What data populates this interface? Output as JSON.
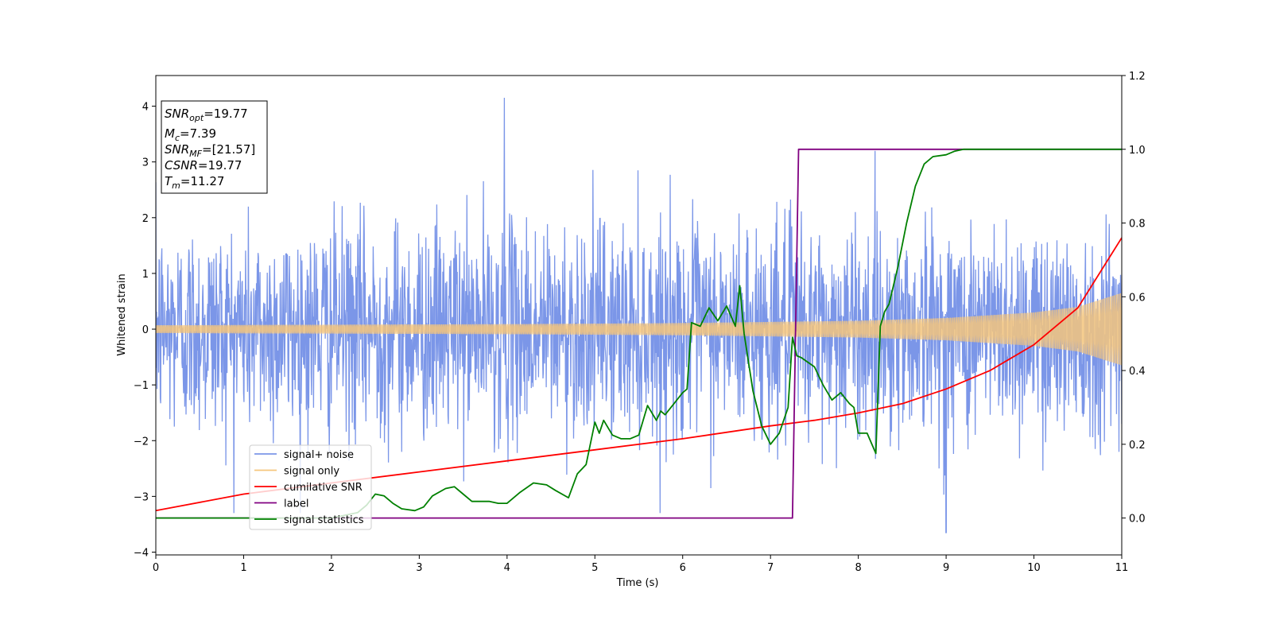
{
  "chart_data": {
    "type": "line",
    "xlabel": "Time (s)",
    "ylabel": "Whitened strain",
    "xlim": [
      0,
      11
    ],
    "ylim": [
      -4.05,
      4.55
    ],
    "y2lim": [
      -0.1,
      1.2
    ],
    "xticks": [
      0,
      1,
      2,
      3,
      4,
      5,
      6,
      7,
      8,
      9,
      10,
      11
    ],
    "yticks": [
      -4,
      -3,
      -2,
      -1,
      0,
      1,
      2,
      3,
      4
    ],
    "y2ticks": [
      0.0,
      0.2,
      0.4,
      0.6,
      0.8,
      1.0,
      1.2
    ],
    "grid": false,
    "legend_position": "lower-left",
    "annotation": {
      "lines": [
        {
          "sym": "SNR",
          "sub": "opt",
          "text": "=19.77"
        },
        {
          "sym": "M",
          "sub": "c",
          "text": "=7.39"
        },
        {
          "sym": "SNR",
          "sub": "MF",
          "text": "=[21.57]"
        },
        {
          "sym": "CSNR",
          "sub": "",
          "text": "=19.77"
        },
        {
          "sym": "T",
          "sub": "m",
          "text": "=11.27"
        }
      ]
    },
    "series": [
      {
        "name": "signal+ noise",
        "axis": "left",
        "color": "#7b96e8",
        "description": "noisy whitened strain, approx std 1.0, peaks near 4.15 at x=3.97 and -3.65 at x=9.0"
      },
      {
        "name": "signal only",
        "axis": "left",
        "color": "#f5c67c",
        "envelope": {
          "x": [
            0,
            2,
            4,
            6,
            8,
            9,
            10,
            10.5,
            11
          ],
          "amp": [
            0.07,
            0.08,
            0.09,
            0.11,
            0.15,
            0.2,
            0.3,
            0.4,
            0.65
          ]
        }
      },
      {
        "name": "cumilative SNR",
        "axis": "right",
        "color": "#ff0000",
        "x": [
          0,
          1,
          2,
          3,
          4,
          5,
          6,
          7,
          7.5,
          8,
          8.5,
          9,
          9.5,
          10,
          10.5,
          11
        ],
        "y": [
          0.02,
          0.065,
          0.095,
          0.125,
          0.155,
          0.185,
          0.215,
          0.25,
          0.265,
          0.285,
          0.31,
          0.35,
          0.4,
          0.47,
          0.57,
          0.76
        ]
      },
      {
        "name": "label",
        "axis": "right",
        "color": "#800080",
        "x": [
          0,
          7.25,
          7.32,
          11
        ],
        "y": [
          0.0,
          0.0,
          1.0,
          1.0
        ]
      },
      {
        "name": "signal statistics",
        "axis": "right",
        "color": "#008000",
        "x": [
          0,
          1,
          2.0,
          2.3,
          2.4,
          2.5,
          2.6,
          2.7,
          2.8,
          2.95,
          3.05,
          3.15,
          3.3,
          3.4,
          3.5,
          3.6,
          3.8,
          3.9,
          4.0,
          4.15,
          4.3,
          4.45,
          4.55,
          4.7,
          4.8,
          4.9,
          5.0,
          5.05,
          5.1,
          5.2,
          5.3,
          5.4,
          5.5,
          5.6,
          5.7,
          5.75,
          5.8,
          5.9,
          6.0,
          6.05,
          6.1,
          6.2,
          6.3,
          6.4,
          6.5,
          6.6,
          6.65,
          6.7,
          6.8,
          6.9,
          7.0,
          7.1,
          7.2,
          7.25,
          7.3,
          7.35,
          7.5,
          7.6,
          7.7,
          7.8,
          7.9,
          7.95,
          8.0,
          8.1,
          8.2,
          8.25,
          8.3,
          8.35,
          8.45,
          8.55,
          8.65,
          8.75,
          8.85,
          9.0,
          9.1,
          9.2,
          9.3,
          9.5,
          9.8,
          10.5,
          11
        ],
        "y": [
          0.0,
          0.0,
          0.0,
          0.015,
          0.035,
          0.065,
          0.06,
          0.04,
          0.025,
          0.02,
          0.03,
          0.06,
          0.08,
          0.085,
          0.065,
          0.045,
          0.045,
          0.04,
          0.04,
          0.07,
          0.095,
          0.09,
          0.075,
          0.055,
          0.12,
          0.145,
          0.26,
          0.23,
          0.265,
          0.225,
          0.215,
          0.215,
          0.225,
          0.305,
          0.265,
          0.29,
          0.28,
          0.31,
          0.34,
          0.35,
          0.53,
          0.52,
          0.57,
          0.535,
          0.575,
          0.52,
          0.63,
          0.5,
          0.345,
          0.25,
          0.2,
          0.23,
          0.3,
          0.49,
          0.44,
          0.435,
          0.41,
          0.36,
          0.32,
          0.34,
          0.31,
          0.3,
          0.23,
          0.23,
          0.175,
          0.52,
          0.56,
          0.58,
          0.68,
          0.8,
          0.9,
          0.96,
          0.98,
          0.985,
          0.995,
          1.0,
          1.0,
          1.0,
          1.0,
          1.0,
          1.0
        ]
      }
    ]
  }
}
